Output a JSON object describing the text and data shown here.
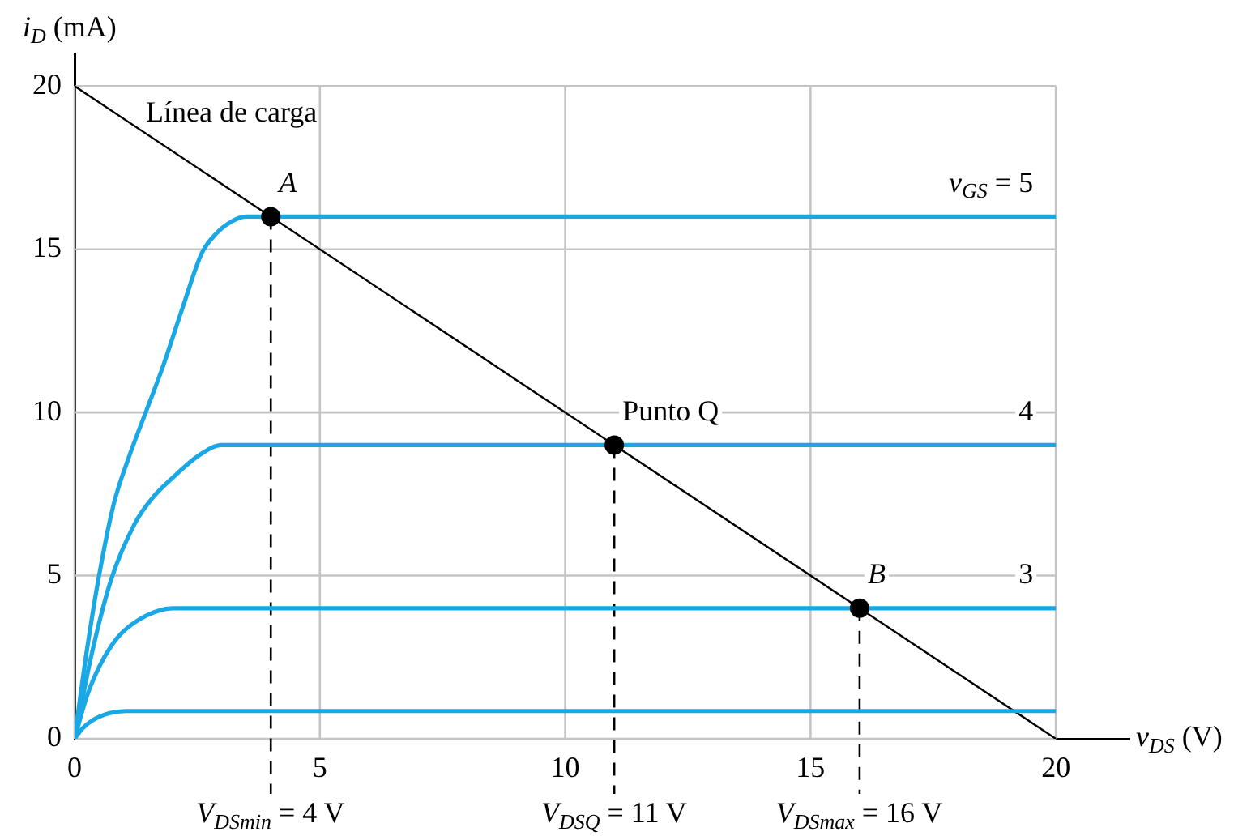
{
  "chart_data": {
    "type": "line",
    "xlabel": "v$_{DS}$ (V)",
    "ylabel": "i$_{D}$ (mA)",
    "xlim": [
      0,
      21.5
    ],
    "ylim": [
      0,
      21
    ],
    "xticks": [
      0,
      5,
      10,
      15,
      20
    ],
    "yticks": [
      0,
      5,
      10,
      15,
      20
    ],
    "grid": true,
    "legend": false,
    "marker": "none",
    "series": [
      {
        "name": "v$_{GS}$ = 5",
        "color": "#1aa7e6",
        "x": [
          0,
          0.25,
          0.5,
          0.8,
          1.1,
          1.45,
          1.8,
          2.2,
          2.6,
          2.9,
          3.2,
          3.5,
          4,
          20
        ],
        "values": [
          0,
          2.7,
          5,
          7.2,
          8.6,
          10,
          11.4,
          13.2,
          14.9,
          15.5,
          15.85,
          16,
          16,
          16
        ]
      },
      {
        "name": "4",
        "color": "#1aa7e6",
        "x": [
          0,
          0.35,
          0.74,
          1.23,
          1.6,
          2,
          2.55,
          3,
          20
        ],
        "values": [
          0,
          2.6,
          4.85,
          6.6,
          7.4,
          8,
          8.7,
          9,
          9
        ]
      },
      {
        "name": "3",
        "color": "#1aa7e6",
        "x": [
          0,
          0.25,
          0.5,
          0.75,
          1,
          1.5,
          2,
          20
        ],
        "values": [
          0,
          1.3,
          2.2,
          2.85,
          3.3,
          3.8,
          4,
          4
        ]
      },
      {
        "color": "#1aa7e6",
        "x": [
          0,
          0.15,
          0.35,
          0.7,
          1.05,
          20
        ],
        "values": [
          0,
          0.3,
          0.55,
          0.78,
          0.85,
          0.85
        ]
      },
      {
        "name": "Línea de carga",
        "color": "#000000",
        "x": [
          0,
          20
        ],
        "values": [
          20,
          0
        ]
      },
      {
        "type": "scatter",
        "marker": "circle",
        "color": "#000000",
        "x": [
          4,
          11,
          16
        ],
        "values": [
          16,
          9,
          4
        ]
      }
    ],
    "annotations": [
      {
        "text": "A",
        "x": 4,
        "y": 16
      },
      {
        "text": "Punto Q",
        "x": 11,
        "y": 9
      },
      {
        "text": "B",
        "x": 16,
        "y": 4
      }
    ],
    "ref_lines": [
      {
        "axis": "x",
        "value": 4,
        "label": "V$_{DSmin}$ = 4 V",
        "color": "#000000",
        "line_style": "dashed"
      },
      {
        "axis": "x",
        "value": 11,
        "label": "V$_{DSQ}$ = 11 V",
        "color": "#000000",
        "line_style": "dashed"
      },
      {
        "axis": "x",
        "value": 16,
        "label": "V$_{DSmax}$ = 16 V",
        "color": "#000000",
        "line_style": "dashed"
      }
    ]
  }
}
